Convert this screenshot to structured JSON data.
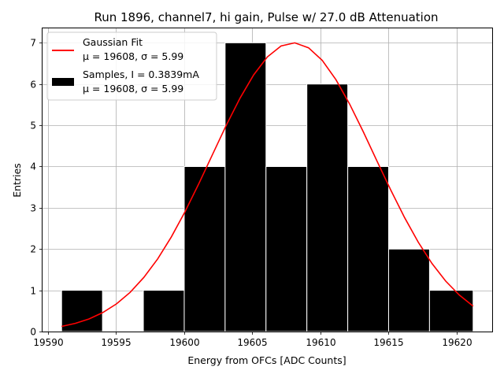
{
  "chart_data": {
    "type": "bar",
    "title": "Run 1896, channel7, hi gain, Pulse w/ 27.0 dB Attenuation",
    "xlabel": "Energy from OFCs [ADC Counts]",
    "ylabel": "Entries",
    "xlim": [
      19589.6,
      19622.6
    ],
    "ylim": [
      0,
      7.35
    ],
    "grid": true,
    "legend_position": "top-left",
    "xticks": [
      {
        "value": 19590,
        "label": "19590"
      },
      {
        "value": 19595,
        "label": "19595"
      },
      {
        "value": 19600,
        "label": "19600"
      },
      {
        "value": 19605,
        "label": "19605"
      },
      {
        "value": 19610,
        "label": "19610"
      },
      {
        "value": 19615,
        "label": "19615"
      },
      {
        "value": 19620,
        "label": "19620"
      }
    ],
    "yticks": [
      {
        "value": 0,
        "label": "0"
      },
      {
        "value": 1,
        "label": "1"
      },
      {
        "value": 2,
        "label": "2"
      },
      {
        "value": 3,
        "label": "3"
      },
      {
        "value": 4,
        "label": "4"
      },
      {
        "value": 5,
        "label": "5"
      },
      {
        "value": 6,
        "label": "6"
      },
      {
        "value": 7,
        "label": "7"
      }
    ],
    "histogram": {
      "name": "Samples, I = 0.3839mA",
      "stats_label": "μ = 19608, σ = 5.99",
      "color": "#000000",
      "edge_color": "#ffffff",
      "bins": [
        {
          "x0": 19591.0,
          "x1": 19594.0,
          "count": 1
        },
        {
          "x0": 19594.0,
          "x1": 19597.0,
          "count": 0
        },
        {
          "x0": 19597.0,
          "x1": 19600.0,
          "count": 1
        },
        {
          "x0": 19600.0,
          "x1": 19603.0,
          "count": 4
        },
        {
          "x0": 19603.0,
          "x1": 19606.0,
          "count": 7
        },
        {
          "x0": 19606.0,
          "x1": 19609.0,
          "count": 4
        },
        {
          "x0": 19609.0,
          "x1": 19612.0,
          "count": 6
        },
        {
          "x0": 19612.0,
          "x1": 19615.0,
          "count": 4
        },
        {
          "x0": 19615.0,
          "x1": 19618.0,
          "count": 2
        },
        {
          "x0": 19618.0,
          "x1": 19621.2,
          "count": 1
        }
      ]
    },
    "fit": {
      "name": "Gaussian Fit",
      "stats_label": "μ = 19608, σ = 5.99",
      "color": "#ff0000",
      "mu": 19608.0,
      "sigma": 5.99,
      "amplitude": 7.0,
      "x_range": [
        19591.0,
        19621.2
      ]
    }
  }
}
